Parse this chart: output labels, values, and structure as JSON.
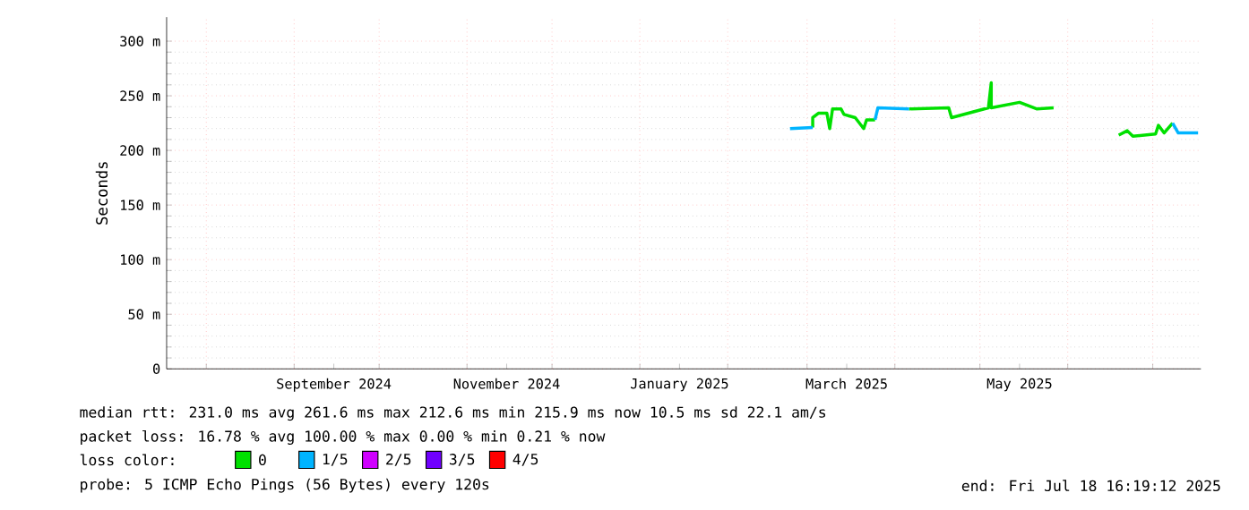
{
  "chart_data": {
    "type": "line",
    "ylabel": "Seconds",
    "xlim": [
      "2024-07-18",
      "2025-07-18"
    ],
    "ylim": [
      0,
      322
    ],
    "xticks": [
      {
        "value": "2024-08-01",
        "label": null
      },
      {
        "value": "2024-09-01",
        "label": null
      },
      {
        "value": "2024-10-01",
        "label": null
      },
      {
        "value": "2024-11-01",
        "label": null
      },
      {
        "value": "2024-12-01",
        "label": null
      },
      {
        "value": "2025-01-01",
        "label": null
      },
      {
        "value": "2025-02-01",
        "label": null
      },
      {
        "value": "2025-03-01",
        "label": null
      },
      {
        "value": "2025-04-01",
        "label": null
      },
      {
        "value": "2025-05-01",
        "label": null
      },
      {
        "value": "2025-06-01",
        "label": null
      },
      {
        "value": "2025-07-01",
        "label": null
      },
      {
        "value": "2024-09-15",
        "label": "September 2024"
      },
      {
        "value": "2024-11-15",
        "label": "November 2024"
      },
      {
        "value": "2025-01-15",
        "label": "January 2025"
      },
      {
        "value": "2025-03-15",
        "label": "March 2025"
      },
      {
        "value": "2025-05-15",
        "label": "May 2025"
      }
    ],
    "yticks": [
      0,
      {
        "value": 50,
        "label": "50 m"
      },
      {
        "value": 100,
        "label": "100 m"
      },
      {
        "value": 150,
        "label": "150 m"
      },
      {
        "value": 200,
        "label": "200 m"
      },
      {
        "value": 250,
        "label": "250 m"
      },
      {
        "value": 300,
        "label": "300 m"
      }
    ],
    "grid": true,
    "legend": "bottom",
    "legend_title": "loss color:",
    "series": [
      {
        "name": "0",
        "color": "#00e000",
        "x": [
          "2025-03-03",
          "2025-03-03",
          "2025-03-05",
          "2025-03-08",
          "2025-03-09",
          "2025-03-10",
          "2025-03-13",
          "2025-03-14",
          "2025-03-18",
          "2025-03-21",
          "2025-03-22",
          "2025-03-25",
          "2025-03-30",
          "2025-04-06",
          "2025-04-20",
          "2025-04-21",
          "2025-05-04",
          "2025-05-05",
          "2025-05-05",
          "2025-05-15",
          "2025-05-21",
          "2025-05-27",
          "2025-06-08",
          "2025-06-19",
          "2025-06-22",
          "2025-06-24",
          "2025-07-02",
          "2025-07-03",
          "2025-07-05",
          "2025-07-08"
        ],
        "values": [
          221,
          230,
          234,
          234,
          220,
          238,
          238,
          233,
          230,
          220,
          228,
          228,
          null,
          238,
          239,
          230,
          239,
          262,
          239,
          244,
          238,
          239,
          null,
          214,
          218,
          213,
          215,
          223,
          216,
          225
        ]
      },
      {
        "name": "1/5",
        "color": "#00b4ff",
        "x": [
          "2025-02-23",
          "2025-03-03",
          "2025-03-06",
          "2025-03-25",
          "2025-03-26",
          "2025-04-06",
          "2025-04-20",
          "2025-07-08",
          "2025-07-10",
          "2025-07-17"
        ],
        "values": [
          220,
          221,
          null,
          228,
          239,
          238,
          null,
          225,
          216,
          216
        ]
      },
      {
        "name": "2/5",
        "color": "#d000ff"
      },
      {
        "name": "3/5",
        "color": "#7000ff"
      },
      {
        "name": "4/5",
        "color": "#ff0000"
      }
    ],
    "annotations": [
      "median rtt:  231.0 ms avg  261.6 ms max  212.6 ms min  215.9 ms now  10.5 ms sd  22.1   am/s",
      "packet loss: 16.78 % avg  100.00 % max  0.00 % min  0.21 % now",
      "probe:       5 ICMP Echo Pings (56 Bytes) every 120s",
      "end: Fri Jul 18 16:19:12 2025"
    ]
  }
}
